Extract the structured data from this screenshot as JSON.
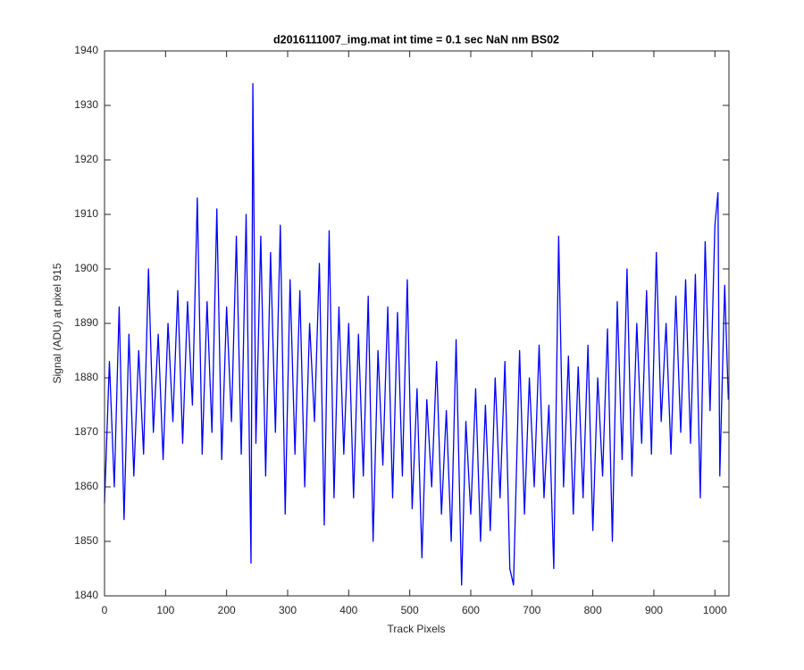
{
  "chart_data": {
    "type": "line",
    "title": "d2016111007_img.mat int time = 0.1 sec  NaN nm BS02",
    "x_label": "Track Pixels",
    "y_label": "Signal (ADU) at pixel 915",
    "xlim": [
      0,
      1023
    ],
    "ylim": [
      1840,
      1940
    ],
    "xticks": [
      0,
      100,
      200,
      300,
      400,
      500,
      600,
      700,
      800,
      900,
      1000
    ],
    "yticks": [
      1840,
      1850,
      1860,
      1870,
      1880,
      1890,
      1900,
      1910,
      1920,
      1930,
      1940
    ],
    "grid": false,
    "x": [
      0,
      8,
      16,
      24,
      32,
      40,
      48,
      56,
      64,
      72,
      80,
      88,
      96,
      104,
      112,
      120,
      128,
      136,
      144,
      152,
      160,
      168,
      176,
      184,
      192,
      200,
      208,
      216,
      224,
      232,
      240,
      243,
      248,
      256,
      264,
      272,
      280,
      288,
      296,
      304,
      312,
      320,
      328,
      336,
      344,
      352,
      360,
      368,
      376,
      384,
      392,
      400,
      408,
      416,
      424,
      432,
      440,
      448,
      456,
      464,
      472,
      480,
      488,
      496,
      504,
      512,
      520,
      528,
      536,
      544,
      552,
      560,
      568,
      576,
      585,
      592,
      600,
      608,
      616,
      624,
      632,
      640,
      648,
      656,
      664,
      670,
      680,
      688,
      696,
      704,
      712,
      720,
      728,
      736,
      744,
      752,
      760,
      768,
      776,
      784,
      792,
      800,
      808,
      816,
      824,
      832,
      840,
      848,
      856,
      864,
      872,
      880,
      888,
      896,
      904,
      912,
      920,
      928,
      936,
      944,
      952,
      960,
      968,
      976,
      984,
      992,
      1000,
      1005,
      1008,
      1016,
      1022
    ],
    "series": [
      {
        "name": "signal",
        "color": "#0000ff",
        "values": [
          1857,
          1883,
          1860,
          1893,
          1854,
          1888,
          1862,
          1885,
          1866,
          1900,
          1870,
          1888,
          1865,
          1890,
          1872,
          1896,
          1868,
          1894,
          1875,
          1913,
          1866,
          1894,
          1870,
          1911,
          1865,
          1893,
          1872,
          1906,
          1866,
          1910,
          1846,
          1934,
          1868,
          1906,
          1862,
          1903,
          1870,
          1908,
          1855,
          1898,
          1866,
          1896,
          1860,
          1890,
          1872,
          1901,
          1853,
          1907,
          1858,
          1893,
          1866,
          1890,
          1858,
          1888,
          1862,
          1895,
          1850,
          1885,
          1864,
          1893,
          1858,
          1892,
          1862,
          1898,
          1856,
          1878,
          1847,
          1876,
          1860,
          1883,
          1855,
          1874,
          1850,
          1887,
          1842,
          1872,
          1855,
          1878,
          1850,
          1875,
          1852,
          1880,
          1858,
          1883,
          1845,
          1842,
          1885,
          1855,
          1880,
          1860,
          1886,
          1858,
          1875,
          1845,
          1906,
          1860,
          1884,
          1855,
          1882,
          1858,
          1886,
          1852,
          1880,
          1862,
          1889,
          1850,
          1894,
          1865,
          1900,
          1862,
          1890,
          1868,
          1896,
          1866,
          1903,
          1872,
          1890,
          1866,
          1895,
          1870,
          1898,
          1868,
          1899,
          1858,
          1905,
          1874,
          1908,
          1914,
          1862,
          1897,
          1876
        ]
      }
    ]
  }
}
